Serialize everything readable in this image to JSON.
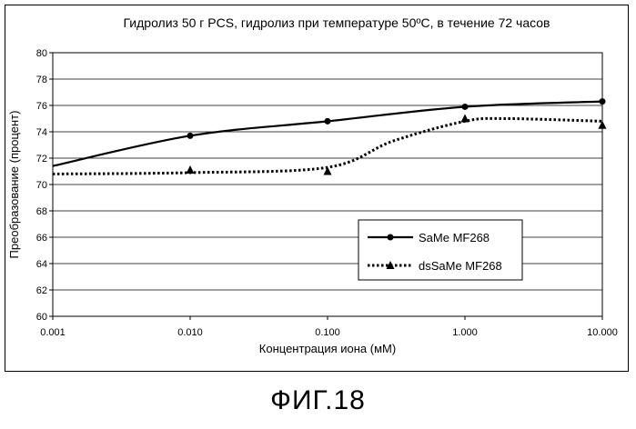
{
  "caption": "ФИГ.18",
  "chart_data": {
    "type": "line",
    "title": "Гидролиз 50 г PCS, гидролиз при температуре 50ºC, в течение 72 часов",
    "xlabel": "Концентрация иона (мМ)",
    "ylabel": "Преобразование (процент)",
    "x_scale": "log",
    "xlim": [
      0.001,
      10
    ],
    "ylim": [
      60,
      80
    ],
    "x_ticks": [
      0.001,
      0.01,
      0.1,
      1,
      10
    ],
    "x_tick_labels": [
      "0.001",
      "0.010",
      "0.100",
      "1.000",
      "10.000"
    ],
    "y_ticks": [
      60,
      62,
      64,
      66,
      68,
      70,
      72,
      74,
      76,
      78,
      80
    ],
    "y_tick_labels": [
      "60",
      "62",
      "64",
      "66",
      "68",
      "70",
      "72",
      "74",
      "76",
      "78",
      "80"
    ],
    "grid": "horizontal",
    "legend_position": "inside-right",
    "series": [
      {
        "name": "SaMe MF268",
        "style": "solid",
        "marker": "circle",
        "color": "#000000",
        "x": [
          0.01,
          0.1,
          1,
          10
        ],
        "y": [
          73.7,
          74.8,
          75.9,
          76.3
        ],
        "curve_x": [
          0.001,
          0.01,
          0.1,
          1,
          10
        ],
        "curve_y": [
          71.4,
          73.7,
          74.8,
          75.9,
          76.3
        ]
      },
      {
        "name": "dsSaMe MF268",
        "style": "dotted",
        "marker": "triangle",
        "color": "#000000",
        "x": [
          0.01,
          0.1,
          1,
          10
        ],
        "y": [
          71.1,
          71.0,
          75.0,
          74.5
        ],
        "curve_x": [
          0.001,
          0.01,
          0.1,
          0.3,
          1,
          2,
          10
        ],
        "curve_y": [
          70.8,
          70.9,
          71.3,
          73.3,
          74.8,
          75.0,
          74.8
        ]
      }
    ]
  }
}
